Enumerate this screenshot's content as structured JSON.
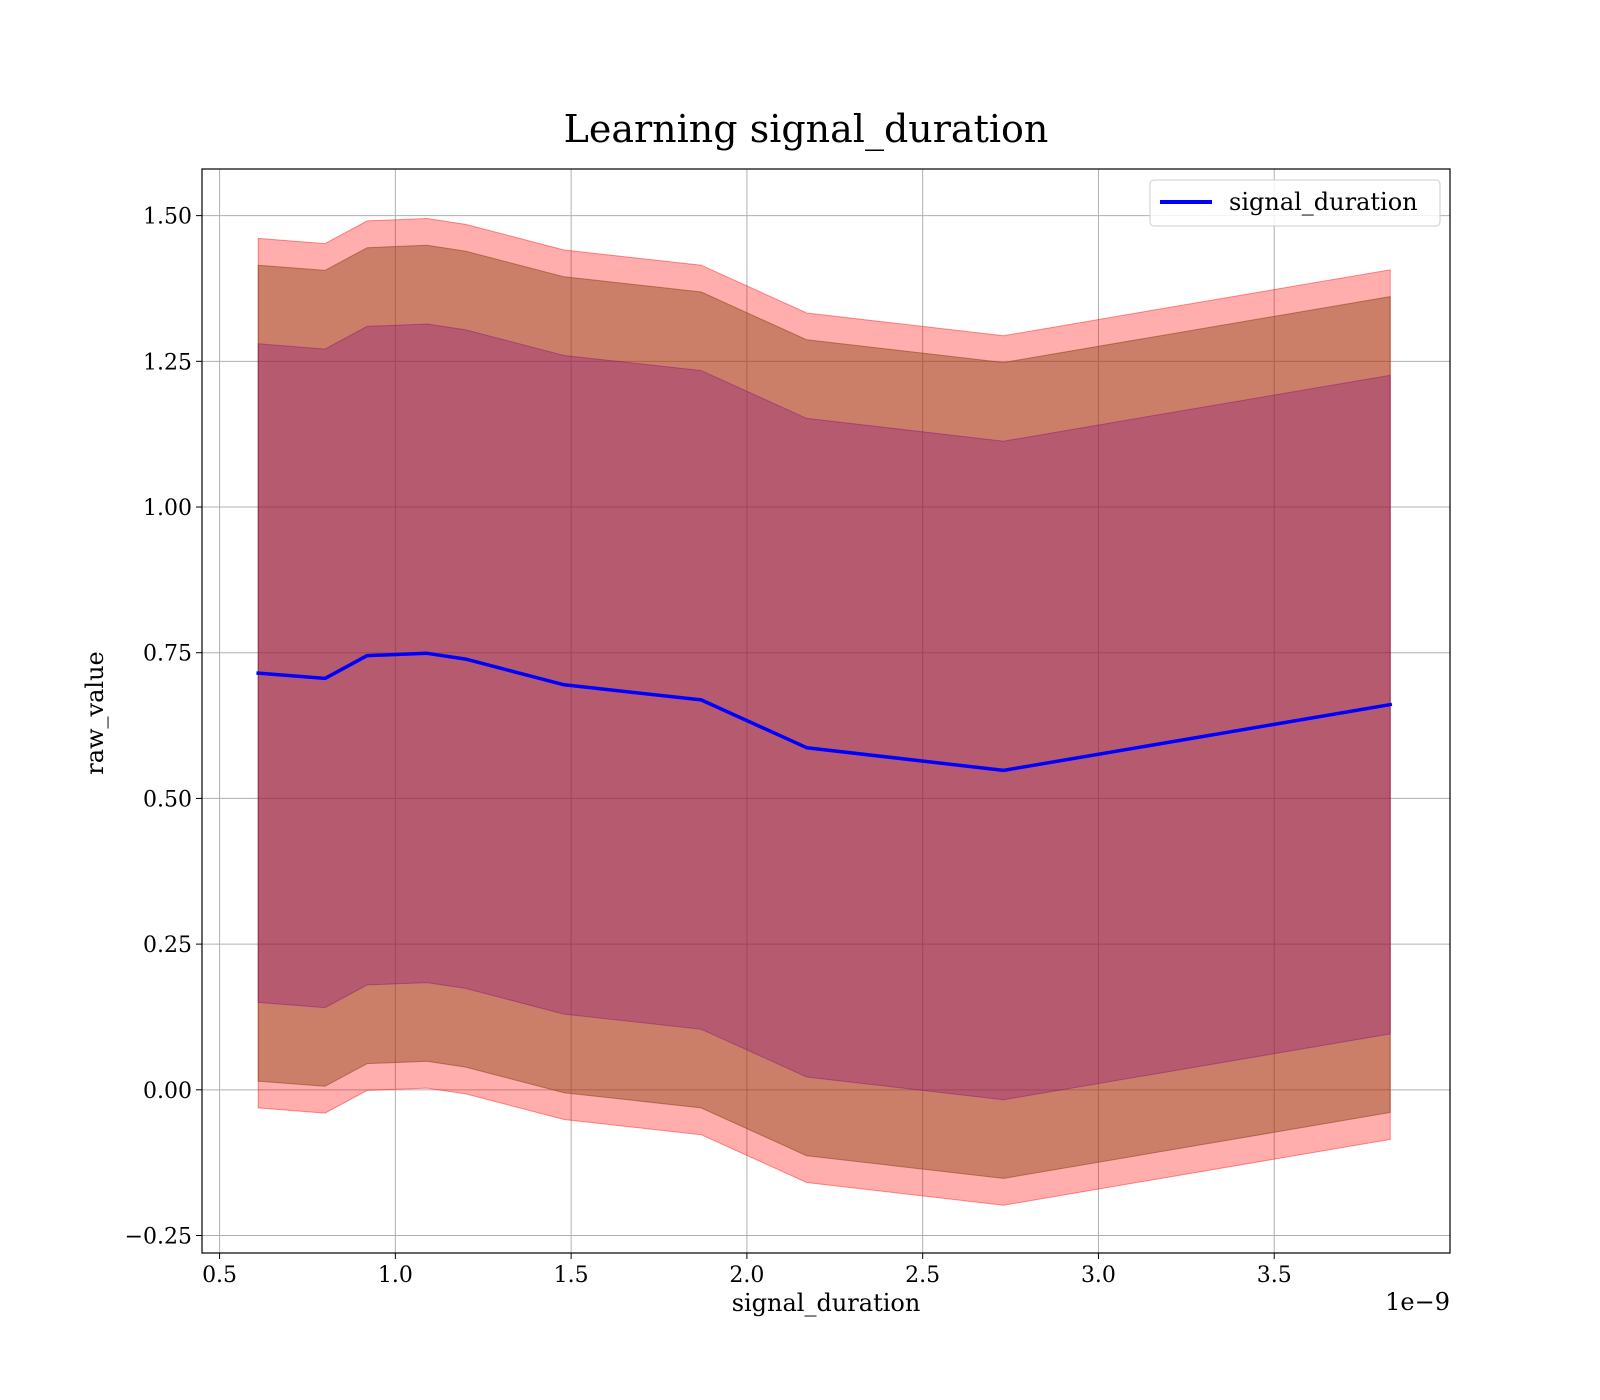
{
  "chart_data": {
    "type": "line",
    "title": "Learning signal_duration",
    "xlabel": "signal_duration",
    "ylabel": "raw_value",
    "x_offset_label": "1e−9",
    "xlim": [
      0.45,
      4.0
    ],
    "ylim": [
      -0.28,
      1.58
    ],
    "x_ticks": [
      0.5,
      1.0,
      1.5,
      2.0,
      2.5,
      3.0,
      3.5
    ],
    "x_tick_labels": [
      "0.5",
      "1.0",
      "1.5",
      "2.0",
      "2.5",
      "3.0",
      "3.5"
    ],
    "y_ticks": [
      -0.25,
      0.0,
      0.25,
      0.5,
      0.75,
      1.0,
      1.25,
      1.5
    ],
    "y_tick_labels": [
      "−0.25",
      "0.00",
      "0.25",
      "0.50",
      "0.75",
      "1.00",
      "1.25",
      "1.50"
    ],
    "grid": true,
    "legend_position": "top-right",
    "x": [
      0.61,
      0.8,
      0.92,
      1.09,
      1.2,
      1.48,
      1.87,
      2.17,
      2.73,
      3.83
    ],
    "series": [
      {
        "name": "signal_duration",
        "color": "#0000ff",
        "values": [
          0.715,
          0.706,
          0.745,
          0.749,
          0.739,
          0.695,
          0.669,
          0.587,
          0.548,
          0.661
        ]
      }
    ],
    "bands": [
      {
        "color": "#ff0000",
        "opacity": 0.32,
        "upper": [
          1.461,
          1.452,
          1.491,
          1.495,
          1.485,
          1.441,
          1.415,
          1.333,
          1.294,
          1.407
        ],
        "lower": [
          -0.031,
          -0.04,
          -0.001,
          0.003,
          -0.007,
          -0.051,
          -0.077,
          -0.159,
          -0.198,
          -0.085
        ]
      },
      {
        "color": "#8b4513",
        "opacity": 0.45,
        "upper": [
          1.415,
          1.406,
          1.445,
          1.449,
          1.439,
          1.395,
          1.369,
          1.287,
          1.248,
          1.361
        ],
        "lower": [
          0.015,
          0.006,
          0.045,
          0.049,
          0.039,
          -0.005,
          -0.031,
          -0.113,
          -0.152,
          -0.039
        ]
      },
      {
        "color": "#800080",
        "opacity": 0.28,
        "upper": [
          1.28,
          1.271,
          1.31,
          1.314,
          1.304,
          1.26,
          1.234,
          1.152,
          1.113,
          1.226
        ],
        "lower": [
          0.15,
          0.141,
          0.18,
          0.184,
          0.174,
          0.13,
          0.104,
          0.022,
          -0.017,
          0.096
        ]
      }
    ]
  }
}
